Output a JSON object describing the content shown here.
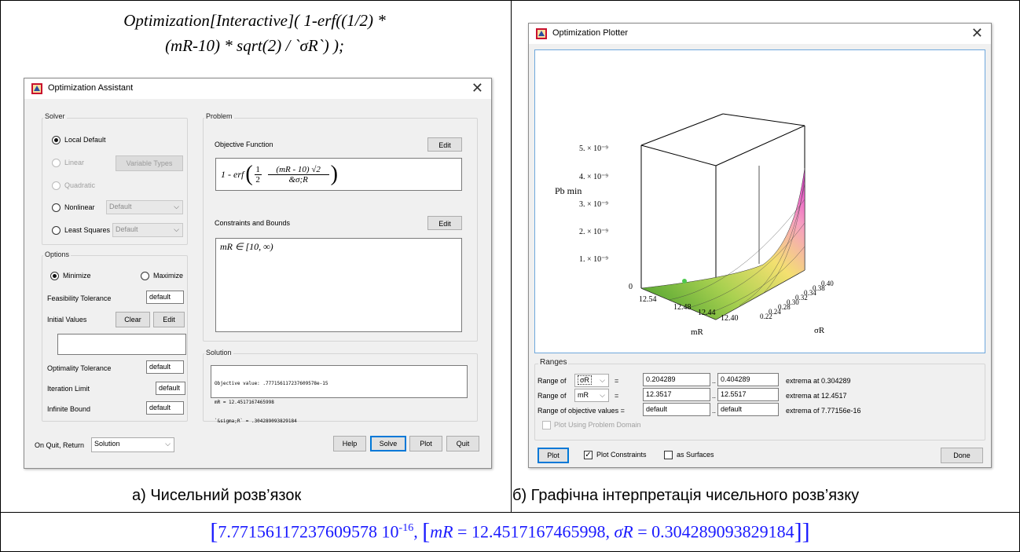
{
  "command": {
    "line1": "Optimization[Interactive]( 1-erf((1/2) *",
    "line2": "(mR-10) * sqrt(2) / `σR`) );"
  },
  "assistant": {
    "title": "Optimization Assistant",
    "solver": {
      "label": "Solver",
      "local_default": "Local Default",
      "linear": "Linear",
      "variable_types": "Variable Types",
      "quadratic": "Quadratic",
      "nonlinear": "Nonlinear",
      "nonlinear_value": "Default",
      "least_squares": "Least Squares",
      "least_squares_value": "Default"
    },
    "options": {
      "label": "Options",
      "minimize": "Minimize",
      "maximize": "Maximize",
      "feasibility_tolerance": "Feasibility Tolerance",
      "feasibility_value": "default",
      "initial_values": "Initial Values",
      "clear": "Clear",
      "edit": "Edit",
      "optimality_tolerance": "Optimality Tolerance",
      "optimality_value": "default",
      "iteration_limit": "Iteration Limit",
      "iteration_value": "default",
      "infinite_bound": "Infinite Bound",
      "infinite_value": "default"
    },
    "problem": {
      "label": "Problem",
      "objective_function": "Objective Function",
      "edit": "Edit",
      "formula_prefix": "1 - erf",
      "frac1_num": "1",
      "frac1_den": "2",
      "frac2_num": "(mR - 10) √2",
      "frac2_den": "&σ;R",
      "constraints": "Constraints and Bounds",
      "constraints_edit": "Edit",
      "constraint": "mR ∈ [10, ∞)"
    },
    "solution": {
      "label": "Solution",
      "line1": "Objective value: .777156117237609578e-15",
      "line2": "mR = 12.4517167465998",
      "line3": "`&sigma;R` = .304289093829184"
    },
    "on_quit_label": "On Quit, Return",
    "on_quit_value": "Solution",
    "help": "Help",
    "solve": "Solve",
    "plot": "Plot",
    "quit": "Quit"
  },
  "plotter": {
    "title": "Optimization Plotter",
    "axis_z_label": "Pb min",
    "axis_x_label": "mR",
    "axis_y_label": "σR",
    "z_ticks": [
      "5. × 10⁻⁹",
      "4. × 10⁻⁹",
      "3. × 10⁻⁹",
      "2. × 10⁻⁹",
      "1. × 10⁻⁹",
      "0"
    ],
    "x_ticks": [
      "12.54",
      "12.48",
      "12.44",
      "12.40"
    ],
    "y_ticks": [
      "0.22",
      "0.24",
      "0.28",
      "0.30",
      "0.32",
      "0.34",
      "0.38",
      "0.40"
    ],
    "ranges": {
      "label": "Ranges",
      "range_of": "Range of",
      "var1": "σR",
      "var2": "mR",
      "eq": "=",
      "dots": "..",
      "sigma_min": "0.204289",
      "sigma_max": "0.404289",
      "sigma_extrema": "extrema at 0.304289",
      "mr_min": "12.3517",
      "mr_max": "12.5517",
      "mr_extrema": "extrema at 12.4517",
      "objective_label": "Range of objective values =",
      "obj_min": "default",
      "obj_max": "default",
      "obj_extrema": "extrema of 7.77156e-16",
      "problem_domain": "Plot Using Problem Domain"
    },
    "plot": "Plot",
    "plot_constraints": "Plot Constraints",
    "as_surfaces": "as Surfaces",
    "done": "Done"
  },
  "captions": {
    "left": "а) Чисельний розв’язок",
    "right": "б) Графічна інтерпретація чисельного розв’язку"
  },
  "result": {
    "value": "7.77156117237609578 10",
    "exponent": "-16",
    "mr_name": "mR",
    "mr_value": "12.4517167465998",
    "sr_name": "σR",
    "sr_value": "0.304289093829184"
  }
}
